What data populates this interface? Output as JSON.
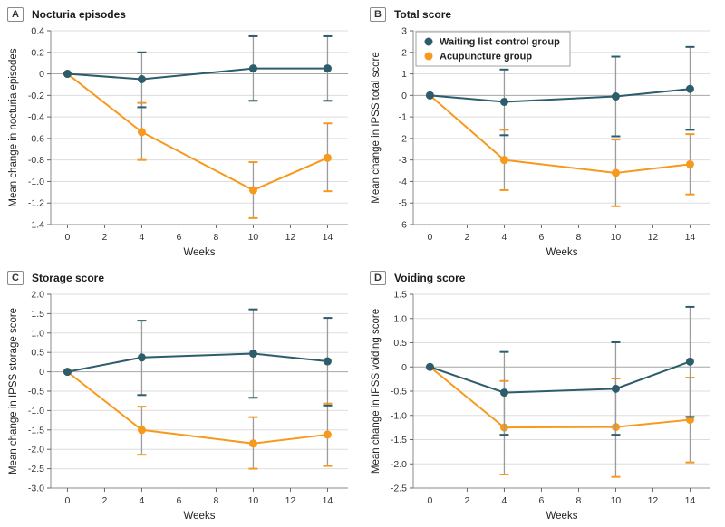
{
  "figure": {
    "description": "Four-panel line chart figure comparing acupuncture group vs waiting list control group over weeks",
    "xlabel": "Weeks"
  },
  "style": {
    "teal": "#2D5D6B",
    "orange": "#F7991C",
    "grid_line": "#DDDDDD",
    "zero_line": "#A6A6A6",
    "spine": "#8A8A8A",
    "error_line": "#9C9C9C",
    "tick_text": "#333333",
    "label_text": "#222222"
  },
  "legend": {
    "items": [
      {
        "label": "Waiting list control group",
        "color": "#2D5D6B"
      },
      {
        "label": "Acupuncture group",
        "color": "#F7991C"
      }
    ]
  },
  "chart_data": [
    {
      "type": "line",
      "panel_label": "A",
      "title": "Nocturia episodes",
      "xlabel": "Weeks",
      "ylabel": "Mean change in nocturia episodes",
      "x": [
        0,
        4,
        10,
        14
      ],
      "xticks": [
        0,
        2,
        4,
        6,
        8,
        10,
        12,
        14
      ],
      "xlim": [
        -0.9,
        15.1
      ],
      "ylim": [
        -1.4,
        0.4
      ],
      "ytick_values": [
        0.4,
        0.2,
        0,
        -0.2,
        -0.4,
        -0.6,
        -0.8,
        -1.0,
        -1.2,
        -1.4
      ],
      "ytick_labels": [
        "0.4",
        "0.2",
        "0",
        "-0.2",
        "-0.4",
        "-0.6",
        "-0.8",
        "-1.0",
        "-1.2",
        "-1.4"
      ],
      "legend_show": false,
      "series": [
        {
          "name": "Waiting list control group",
          "color": "#2D5D6B",
          "values": [
            0,
            -0.05,
            0.05,
            0.05
          ],
          "err_lo": [
            null,
            -0.31,
            -0.25,
            -0.25
          ],
          "err_hi": [
            null,
            0.2,
            0.35,
            0.35
          ]
        },
        {
          "name": "Acupuncture group",
          "color": "#F7991C",
          "values": [
            0,
            -0.54,
            -1.08,
            -0.78
          ],
          "err_lo": [
            null,
            -0.8,
            -1.34,
            -1.09
          ],
          "err_hi": [
            null,
            -0.27,
            -0.82,
            -0.46
          ]
        }
      ]
    },
    {
      "type": "line",
      "panel_label": "B",
      "title": "Total score",
      "xlabel": "Weeks",
      "ylabel": "Mean change in IPSS total score",
      "x": [
        0,
        4,
        10,
        14
      ],
      "xticks": [
        0,
        2,
        4,
        6,
        8,
        10,
        12,
        14
      ],
      "xlim": [
        -0.9,
        15.1
      ],
      "ylim": [
        -6,
        3
      ],
      "ytick_values": [
        3,
        2,
        1,
        0,
        -1,
        -2,
        -3,
        -4,
        -5,
        -6
      ],
      "ytick_labels": [
        "3",
        "2",
        "1",
        "0",
        "-1",
        "-2",
        "-3",
        "-4",
        "-5",
        "-6"
      ],
      "legend_show": true,
      "series": [
        {
          "name": "Waiting list control group",
          "color": "#2D5D6B",
          "values": [
            0,
            -0.3,
            -0.05,
            0.3
          ],
          "err_lo": [
            null,
            -1.85,
            -1.9,
            -1.6
          ],
          "err_hi": [
            null,
            1.2,
            1.8,
            2.25
          ]
        },
        {
          "name": "Acupuncture group",
          "color": "#F7991C",
          "values": [
            0,
            -3.0,
            -3.6,
            -3.2
          ],
          "err_lo": [
            null,
            -4.4,
            -5.15,
            -4.6
          ],
          "err_hi": [
            null,
            -1.6,
            -2.05,
            -1.8
          ]
        }
      ]
    },
    {
      "type": "line",
      "panel_label": "C",
      "title": "Storage score",
      "xlabel": "Weeks",
      "ylabel": "Mean change in IPSS storage score",
      "x": [
        0,
        4,
        10,
        14
      ],
      "xticks": [
        0,
        2,
        4,
        6,
        8,
        10,
        12,
        14
      ],
      "xlim": [
        -0.9,
        15.1
      ],
      "ylim": [
        -3.0,
        2.0
      ],
      "ytick_values": [
        2.0,
        1.5,
        1.0,
        0.5,
        0,
        -0.5,
        -1.0,
        -1.5,
        -2.0,
        -2.5,
        -3.0
      ],
      "ytick_labels": [
        "2.0",
        "1.5",
        "1.0",
        "0.5",
        "0",
        "-0.5",
        "-1.0",
        "-1.5",
        "-2.0",
        "-2.5",
        "-3.0"
      ],
      "legend_show": false,
      "series": [
        {
          "name": "Waiting list control group",
          "color": "#2D5D6B",
          "values": [
            0,
            0.37,
            0.47,
            0.27
          ],
          "err_lo": [
            null,
            -0.6,
            -0.67,
            -0.87
          ],
          "err_hi": [
            null,
            1.32,
            1.61,
            1.39
          ]
        },
        {
          "name": "Acupuncture group",
          "color": "#F7991C",
          "values": [
            0,
            -1.5,
            -1.85,
            -1.62
          ],
          "err_lo": [
            null,
            -2.14,
            -2.5,
            -2.43
          ],
          "err_hi": [
            null,
            -0.9,
            -1.17,
            -0.82
          ]
        }
      ]
    },
    {
      "type": "line",
      "panel_label": "D",
      "title": "Voiding score",
      "xlabel": "Weeks",
      "ylabel": "Mean change in IPSS voiding score",
      "x": [
        0,
        4,
        10,
        14
      ],
      "xticks": [
        0,
        2,
        4,
        6,
        8,
        10,
        12,
        14
      ],
      "xlim": [
        -0.9,
        15.1
      ],
      "ylim": [
        -2.5,
        1.5
      ],
      "ytick_values": [
        1.5,
        1.0,
        0.5,
        0,
        -0.5,
        -1.0,
        -1.5,
        -2.0,
        -2.5
      ],
      "ytick_labels": [
        "1.5",
        "1.0",
        "0.5",
        "0",
        "-0.5",
        "-1.0",
        "-1.5",
        "-2.0",
        "-2.5"
      ],
      "legend_show": false,
      "series": [
        {
          "name": "Waiting list control group",
          "color": "#2D5D6B",
          "values": [
            0,
            -0.53,
            -0.45,
            0.11
          ],
          "err_lo": [
            null,
            -1.4,
            -1.4,
            -1.03
          ],
          "err_hi": [
            null,
            0.31,
            0.51,
            1.24
          ]
        },
        {
          "name": "Acupuncture group",
          "color": "#F7991C",
          "values": [
            0,
            -1.25,
            -1.24,
            -1.09
          ],
          "err_lo": [
            null,
            -2.22,
            -2.27,
            -1.97
          ],
          "err_hi": [
            null,
            -0.29,
            -0.24,
            -0.22
          ]
        }
      ]
    }
  ]
}
